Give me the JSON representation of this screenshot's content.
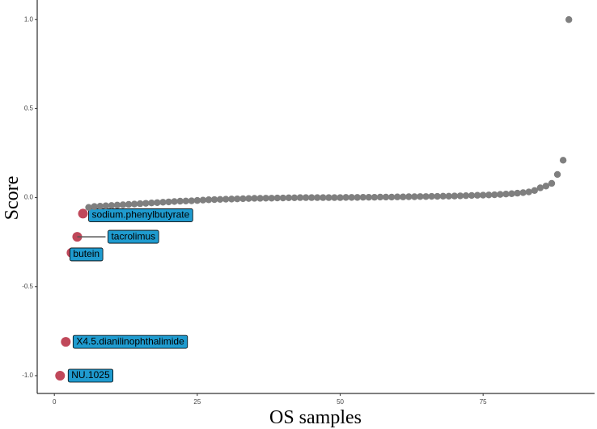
{
  "chart_data": {
    "type": "scatter",
    "x_label": "OS samples",
    "y_label": "Score",
    "xlim": [
      -3,
      94.5
    ],
    "xticks": [
      0,
      25,
      50,
      75
    ],
    "ylim": [
      -1.1,
      1.11
    ],
    "yticks": [
      {
        "value": -1,
        "label": "-1.0"
      },
      {
        "value": -0.5,
        "label": "-0.5"
      },
      {
        "value": 0,
        "label": "0.0"
      },
      {
        "value": 0.5,
        "label": "0.5"
      },
      {
        "value": 1,
        "label": "1.0"
      }
    ],
    "series": [
      {
        "color": "#c0485a",
        "label_color": "#1f9bcf",
        "x": [
          1,
          2,
          3,
          4,
          5
        ],
        "values": [
          -1.0,
          -0.81,
          -0.31,
          -0.22,
          -0.09
        ],
        "labels": [
          "NU.1025",
          "X4.5.dianilinophthalimide",
          "butein",
          "tacrolimus",
          "sodium.phenylbutyrate"
        ]
      },
      {
        "color": "#7f7f7f",
        "x": [
          6,
          7,
          8,
          9,
          10,
          11,
          12,
          13,
          14,
          15,
          16,
          17,
          18,
          19,
          20,
          21,
          22,
          23,
          24,
          25,
          26,
          27,
          28,
          29,
          30,
          31,
          32,
          33,
          34,
          35,
          36,
          37,
          38,
          39,
          40,
          41,
          42,
          43,
          44,
          45,
          46,
          47,
          48,
          49,
          50,
          51,
          52,
          53,
          54,
          55,
          56,
          57,
          58,
          59,
          60,
          61,
          62,
          63,
          64,
          65,
          66,
          67,
          68,
          69,
          70,
          71,
          72,
          73,
          74,
          75,
          76,
          77,
          78,
          79,
          80,
          81,
          82,
          83,
          84,
          85,
          86,
          87,
          88,
          89,
          90
        ],
        "values": [
          -0.055,
          -0.05,
          -0.048,
          -0.046,
          -0.044,
          -0.042,
          -0.04,
          -0.038,
          -0.036,
          -0.034,
          -0.032,
          -0.03,
          -0.028,
          -0.026,
          -0.024,
          -0.022,
          -0.02,
          -0.019,
          -0.018,
          -0.016,
          -0.014,
          -0.012,
          -0.011,
          -0.01,
          -0.009,
          -0.008,
          -0.007,
          -0.006,
          -0.005,
          -0.004,
          -0.004,
          -0.003,
          -0.003,
          -0.002,
          -0.002,
          -0.001,
          -0.001,
          0,
          0,
          0,
          0,
          0,
          0,
          0,
          0,
          0.001,
          0.001,
          0.001,
          0.002,
          0.002,
          0.002,
          0.003,
          0.003,
          0.003,
          0.004,
          0.004,
          0.005,
          0.005,
          0.006,
          0.006,
          0.007,
          0.007,
          0.008,
          0.008,
          0.009,
          0.01,
          0.011,
          0.012,
          0.013,
          0.014,
          0.015,
          0.016,
          0.018,
          0.02,
          0.022,
          0.025,
          0.028,
          0.032,
          0.04,
          0.055,
          0.065,
          0.08,
          0.13,
          0.21,
          1.0
        ]
      }
    ]
  }
}
